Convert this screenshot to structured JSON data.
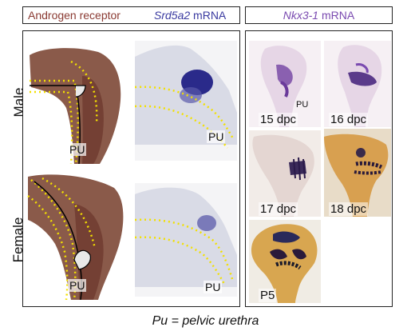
{
  "header": {
    "left_part1": "Androgen receptor",
    "left_part2_italic": "Srd5a2",
    "left_part2_rest": " mRNA",
    "right_italic": "Nkx3-1",
    "right_rest": " mRNA"
  },
  "rows": {
    "male": "Male",
    "female": "Female"
  },
  "left_panel": {
    "pu_male_ar": "PU",
    "pu_male_srd": "PU",
    "pu_female_ar": "PU",
    "pu_female_srd": "PU"
  },
  "right_panel": {
    "pu_label": "PU",
    "ages": [
      "15 dpc",
      "16 dpc",
      "17 dpc",
      "18 dpc",
      "P5"
    ]
  },
  "footnote": "Pu = pelvic urethra",
  "colors": {
    "ar_stain": "#8a4a3a",
    "srd_stain": "#2a2a8a",
    "nkx_stain": "#6a3a9a",
    "outline_dots": "#f2e000"
  }
}
